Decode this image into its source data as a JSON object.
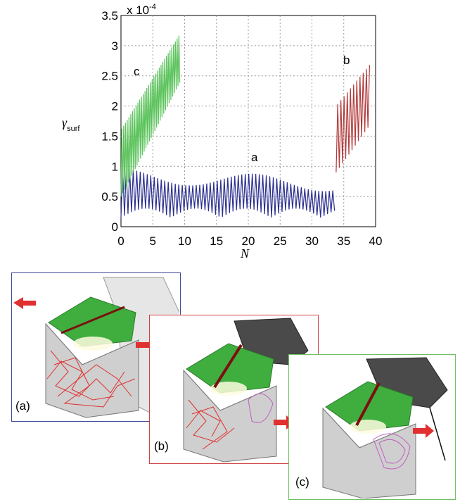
{
  "chart_data": {
    "type": "line",
    "xlabel": "N",
    "ylabel": "γ",
    "ylabel_sub": "surf",
    "scale_note_base": "x 10",
    "scale_note_exp": "-4",
    "xlim": [
      0,
      40
    ],
    "ylim": [
      0,
      3.5
    ],
    "x_ticks": [
      "0",
      "5",
      "10",
      "15",
      "20",
      "25",
      "30",
      "35",
      "40"
    ],
    "y_ticks": [
      "0",
      "0.5",
      "1",
      "1.5",
      "2",
      "2.5",
      "3",
      "3.5"
    ],
    "grid": true,
    "series": [
      {
        "label": "a",
        "color": "#2c2f8f",
        "x_range": [
          0,
          33.8
        ],
        "low": 0.12,
        "high": 1.0,
        "period": 0.55
      },
      {
        "label": "b",
        "color": "#b23a3a",
        "x_range": [
          33.8,
          39.2
        ],
        "low": 0.9,
        "high": 2.7,
        "period": 0.5
      },
      {
        "label": "c",
        "color": "#5cc35c",
        "x_range": [
          0,
          9.3
        ],
        "low": 0.5,
        "high": 3.2,
        "period": 0.28
      }
    ]
  },
  "panels": [
    {
      "label": "(a)",
      "border": "#3b4a9a",
      "tube_color": "#e03030"
    },
    {
      "label": "(b)",
      "border": "#d04040",
      "tube_color": "#e03030"
    },
    {
      "label": "(c)",
      "border": "#70c060",
      "tube_color": "#c060c0"
    }
  ]
}
